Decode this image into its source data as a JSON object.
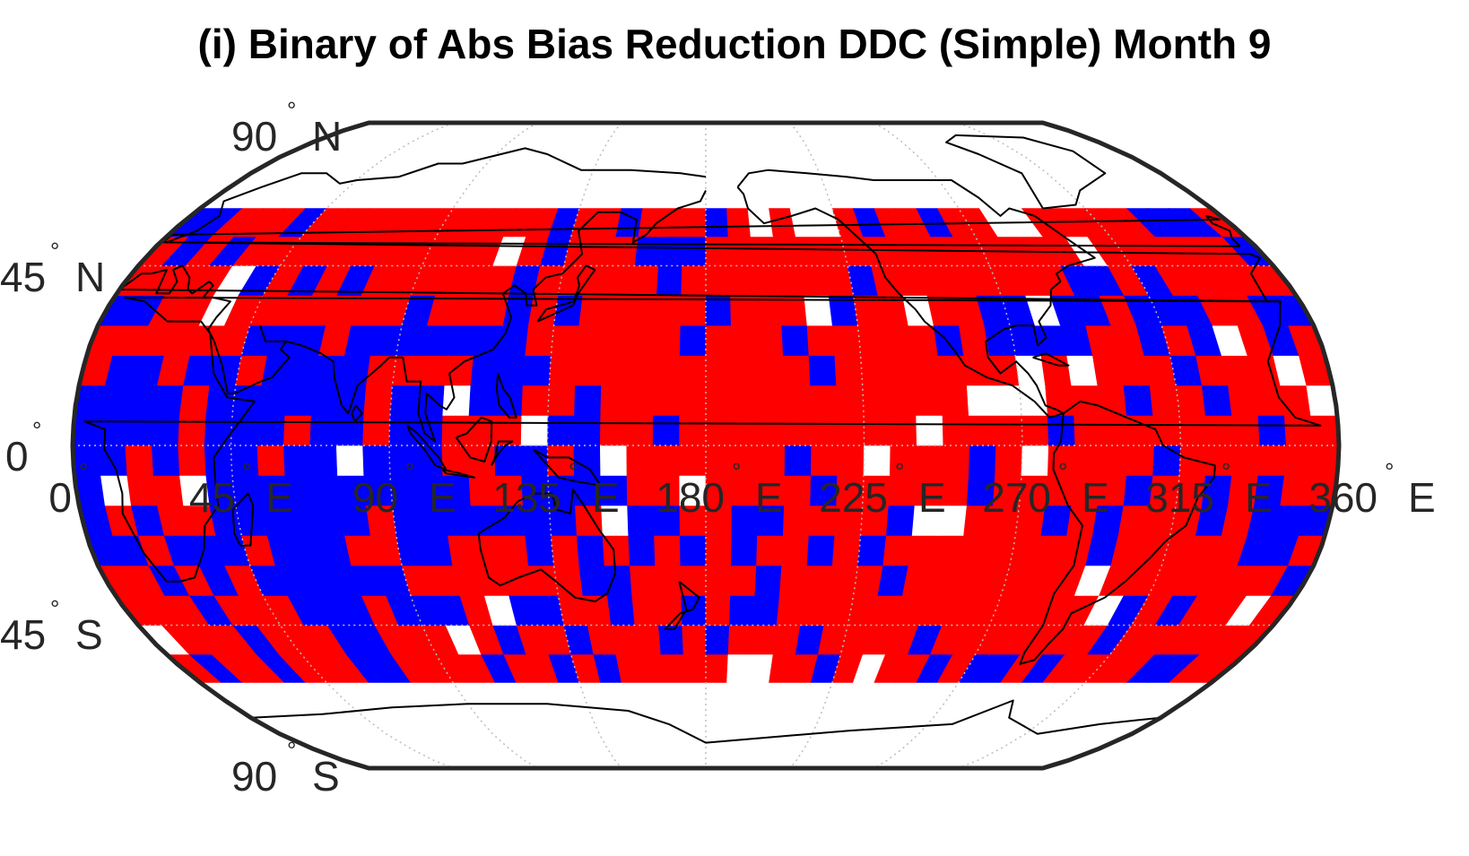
{
  "title": "(i) Binary of Abs Bias Reduction DDC (Simple) Month 9",
  "map": {
    "projection": "Robinson",
    "grid_resolution_deg": 7.5,
    "lat_extent": [
      -60,
      60
    ],
    "lon_extent": [
      0,
      360
    ],
    "colors": {
      "reduction": "#ff0000",
      "no_reduction": "#0000ff",
      "no_data": "#ffffff",
      "coastline": "#000000",
      "frame": "#262626",
      "graticule": "#bdbdbd"
    },
    "lat_labels": [
      {
        "value": "90",
        "hemi": "N"
      },
      {
        "value": "45",
        "hemi": "N"
      },
      {
        "value": "0",
        "hemi": ""
      },
      {
        "value": "45",
        "hemi": "S"
      },
      {
        "value": "90",
        "hemi": "S"
      }
    ],
    "lon_labels": [
      {
        "value": "0",
        "hemi": ""
      },
      {
        "value": "45",
        "hemi": "E"
      },
      {
        "value": "90",
        "hemi": "E"
      },
      {
        "value": "135",
        "hemi": "E"
      },
      {
        "value": "180",
        "hemi": "E"
      },
      {
        "value": "225",
        "hemi": "E"
      },
      {
        "value": "270",
        "hemi": "E"
      },
      {
        "value": "315",
        "hemi": "E"
      },
      {
        "value": "360",
        "hemi": "E"
      }
    ],
    "degree_symbol": "°"
  }
}
